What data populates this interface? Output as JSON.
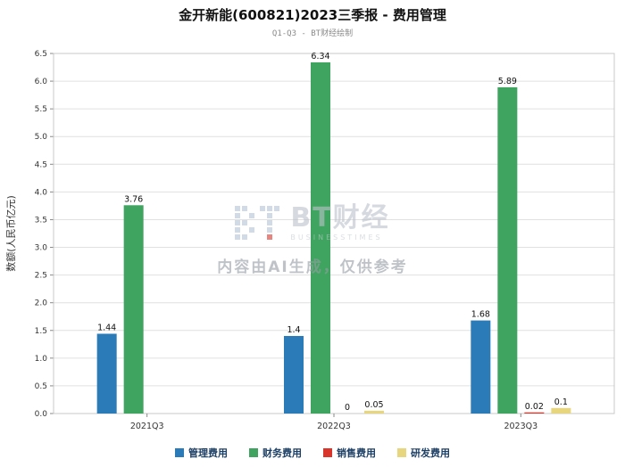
{
  "header": {
    "title": "金开新能(600821)2023三季报 - 费用管理",
    "subtitle": "Q1-Q3 - BT财经绘制"
  },
  "watermark": {
    "logo_text": "BT财经",
    "logo_sub": "BUSINESSTIMES",
    "disclaimer": "内容由AI生成，仅供参考"
  },
  "chart_data": {
    "type": "bar",
    "title": "金开新能(600821)2023三季报 - 费用管理",
    "subtitle": "Q1-Q3 - BT财经绘制",
    "xlabel": "",
    "ylabel": "数额(人民币亿元)",
    "categories": [
      "2021Q3",
      "2022Q3",
      "2023Q3"
    ],
    "series": [
      {
        "name": "管理费用",
        "color": "#2b7bb9",
        "values": [
          1.44,
          1.4,
          1.68
        ],
        "labels": [
          "1.44",
          "1.4",
          "1.68"
        ]
      },
      {
        "name": "财务费用",
        "color": "#3fa45f",
        "values": [
          3.76,
          6.34,
          5.89
        ],
        "labels": [
          "3.76",
          "6.34",
          "5.89"
        ]
      },
      {
        "name": "销售费用",
        "color": "#d9352a",
        "values": [
          null,
          0,
          0.02
        ],
        "labels": [
          null,
          "0",
          "0.02"
        ]
      },
      {
        "name": "研发费用",
        "color": "#e8d67f",
        "values": [
          null,
          0.05,
          0.1
        ],
        "labels": [
          null,
          "0.05",
          "0.1"
        ]
      }
    ],
    "ylim": [
      0,
      6.5
    ],
    "ytick_step": 0.5,
    "grid": true,
    "legend_position": "bottom"
  }
}
